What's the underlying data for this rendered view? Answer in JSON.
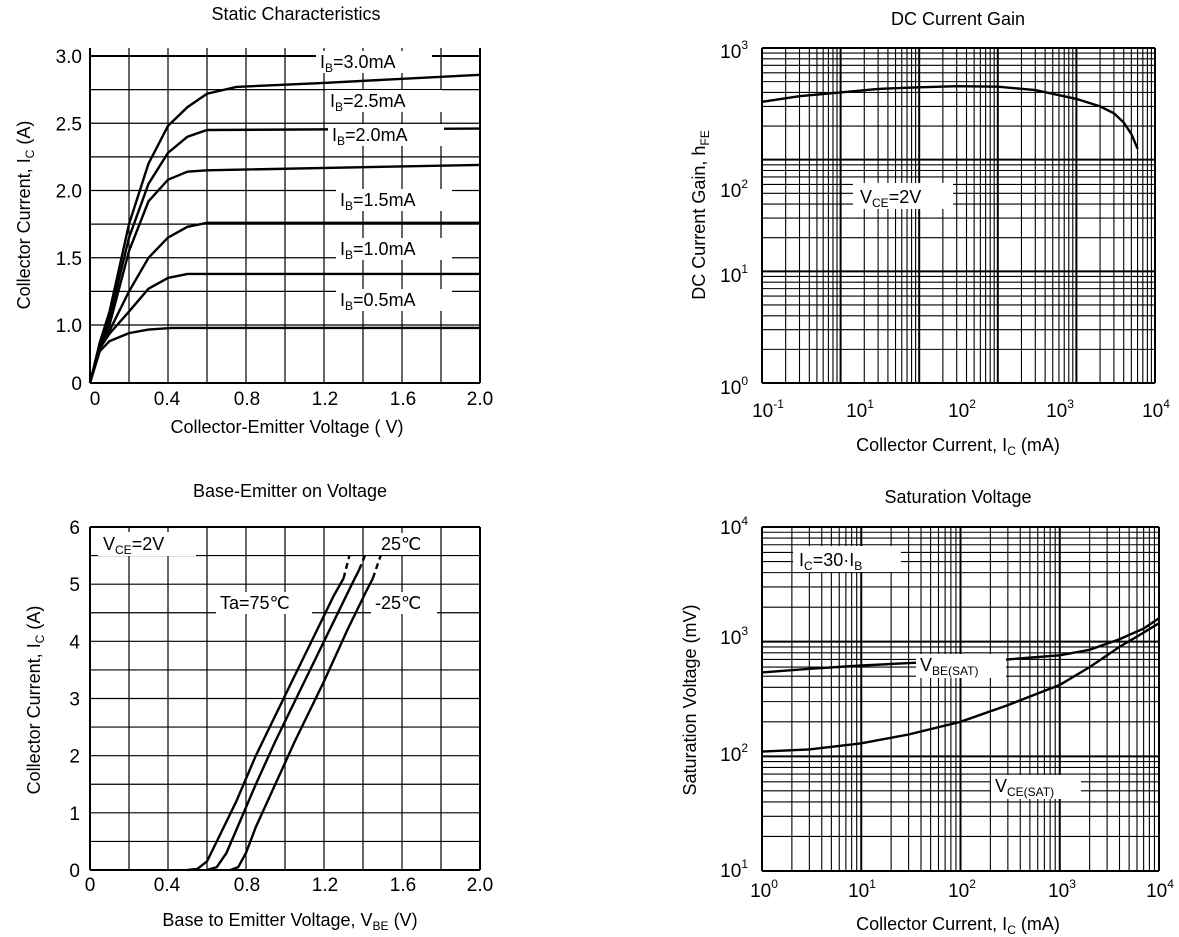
{
  "chart_data": [
    {
      "type": "line",
      "title": "Static Characteristics",
      "xlabel": "Collector-Emitter Voltage ( V)",
      "ylabel_main": "Collector Current, I",
      "ylabel_sub": "C",
      "ylabel_tail": " (A)",
      "xlim": [
        0,
        2.0
      ],
      "ylim": [
        0,
        3.0
      ],
      "x_ticks": [
        "0",
        "0.4",
        "0.8",
        "1.2",
        "1.6",
        "2.0"
      ],
      "y_ticks": [
        "0",
        "1.0",
        "1.5",
        "2.0",
        "2.5",
        "3.0"
      ],
      "grid": true,
      "series": [
        {
          "name": "IB=0.5mA",
          "label_main": "I",
          "label_sub": "B",
          "label_tail": "=0.5mA",
          "points": [
            [
              0,
              0
            ],
            [
              0.05,
              0.55
            ],
            [
              0.1,
              0.72
            ],
            [
              0.2,
              0.86
            ],
            [
              0.3,
              0.92
            ],
            [
              0.42,
              0.95
            ],
            [
              2.0,
              0.95
            ]
          ]
        },
        {
          "name": "IB=1.0mA",
          "label_main": "I",
          "label_sub": "B",
          "label_tail": "=1.0mA",
          "points": [
            [
              0,
              0
            ],
            [
              0.05,
              0.6
            ],
            [
              0.1,
              0.85
            ],
            [
              0.2,
              1.1
            ],
            [
              0.3,
              1.27
            ],
            [
              0.4,
              1.35
            ],
            [
              0.5,
              1.38
            ],
            [
              2.0,
              1.38
            ]
          ]
        },
        {
          "name": "IB=1.5mA",
          "label_main": "I",
          "label_sub": "B",
          "label_tail": "=1.5mA",
          "points": [
            [
              0,
              0
            ],
            [
              0.05,
              0.62
            ],
            [
              0.1,
              0.9
            ],
            [
              0.2,
              1.25
            ],
            [
              0.3,
              1.5
            ],
            [
              0.4,
              1.65
            ],
            [
              0.5,
              1.73
            ],
            [
              0.6,
              1.76
            ],
            [
              2.0,
              1.76
            ]
          ]
        },
        {
          "name": "IB=2.0mA",
          "label_main": "I",
          "label_sub": "B",
          "label_tail": "=2.0mA",
          "points": [
            [
              0,
              0
            ],
            [
              0.05,
              0.65
            ],
            [
              0.1,
              1.0
            ],
            [
              0.2,
              1.55
            ],
            [
              0.3,
              1.92
            ],
            [
              0.4,
              2.08
            ],
            [
              0.5,
              2.14
            ],
            [
              0.6,
              2.15
            ],
            [
              2.0,
              2.19
            ]
          ]
        },
        {
          "name": "IB=2.5mA",
          "label_main": "I",
          "label_sub": "B",
          "label_tail": "=2.5mA",
          "points": [
            [
              0,
              0
            ],
            [
              0.05,
              0.68
            ],
            [
              0.1,
              1.05
            ],
            [
              0.2,
              1.65
            ],
            [
              0.3,
              2.05
            ],
            [
              0.4,
              2.28
            ],
            [
              0.5,
              2.4
            ],
            [
              0.6,
              2.45
            ],
            [
              2.0,
              2.46
            ]
          ]
        },
        {
          "name": "IB=3.0mA",
          "label_main": "I",
          "label_sub": "B",
          "label_tail": "=3.0mA",
          "points": [
            [
              0,
              0
            ],
            [
              0.05,
              0.7
            ],
            [
              0.1,
              1.1
            ],
            [
              0.2,
              1.75
            ],
            [
              0.3,
              2.2
            ],
            [
              0.4,
              2.48
            ],
            [
              0.5,
              2.62
            ],
            [
              0.6,
              2.72
            ],
            [
              0.75,
              2.77
            ],
            [
              1.2,
              2.8
            ],
            [
              2.0,
              2.86
            ]
          ]
        }
      ]
    },
    {
      "type": "line",
      "title": "DC Current Gain",
      "xlabel_main": "Collector Current, I",
      "xlabel_sub": "C",
      "xlabel_tail": " (mA)",
      "ylabel_main": "DC Current Gain, h",
      "ylabel_sub": "FE",
      "x_log": true,
      "y_log": true,
      "xlim": [
        0.1,
        10000
      ],
      "ylim": [
        1,
        1000
      ],
      "x_ticks": [
        {
          "base": "10",
          "exp": "-1"
        },
        {
          "base": "10",
          "exp": "1"
        },
        {
          "base": "10",
          "exp": "2"
        },
        {
          "base": "10",
          "exp": "3"
        },
        {
          "base": "10",
          "exp": "4"
        }
      ],
      "y_ticks": [
        {
          "base": "10",
          "exp": "0"
        },
        {
          "base": "10",
          "exp": "1"
        },
        {
          "base": "10",
          "exp": "2"
        },
        {
          "base": "10",
          "exp": "3"
        }
      ],
      "annotation": {
        "main": "V",
        "sub": "CE",
        "tail": "=2V"
      },
      "grid": true,
      "series": [
        {
          "points": [
            [
              0.1,
              330
            ],
            [
              0.3,
              370
            ],
            [
              1,
              400
            ],
            [
              3,
              430
            ],
            [
              10,
              445
            ],
            [
              30,
              455
            ],
            [
              100,
              450
            ],
            [
              300,
              420
            ],
            [
              1000,
              350
            ],
            [
              2000,
              300
            ],
            [
              3000,
              260
            ],
            [
              4000,
              215
            ],
            [
              5000,
              170
            ],
            [
              6000,
              125
            ]
          ]
        }
      ]
    },
    {
      "type": "line",
      "title": "Base-Emitter on Voltage",
      "xlabel_main": "Base to Emitter Voltage,  V",
      "xlabel_sub": "BE",
      "xlabel_tail": " (V)",
      "ylabel_main": "Collector Current, I",
      "ylabel_sub": "C",
      "ylabel_tail": " (A)",
      "xlim": [
        0,
        2.0
      ],
      "ylim": [
        0,
        6
      ],
      "x_ticks": [
        "0",
        "0.4",
        "0.8",
        "1.2",
        "1.6",
        "2.0"
      ],
      "y_ticks": [
        "0",
        "1",
        "2",
        "3",
        "4",
        "5",
        "6"
      ],
      "annotation": {
        "main": "V",
        "sub": "CE",
        "tail": "=2V"
      },
      "grid": true,
      "series": [
        {
          "name": "Ta=75℃",
          "label": "Ta=75℃",
          "points": [
            [
              0.5,
              0
            ],
            [
              0.55,
              0.02
            ],
            [
              0.6,
              0.15
            ],
            [
              0.65,
              0.5
            ],
            [
              0.75,
              1.2
            ],
            [
              0.85,
              2.0
            ],
            [
              1.0,
              3.05
            ],
            [
              1.15,
              4.1
            ],
            [
              1.25,
              4.8
            ],
            [
              1.3,
              5.1
            ]
          ],
          "dashed_points": [
            [
              1.3,
              5.1
            ],
            [
              1.33,
              5.5
            ]
          ]
        },
        {
          "name": "25℃",
          "label": "25℃",
          "points": [
            [
              0.6,
              0
            ],
            [
              0.65,
              0.05
            ],
            [
              0.7,
              0.3
            ],
            [
              0.75,
              0.7
            ],
            [
              0.85,
              1.5
            ],
            [
              0.95,
              2.25
            ],
            [
              1.1,
              3.3
            ],
            [
              1.25,
              4.35
            ],
            [
              1.35,
              5.05
            ],
            [
              1.38,
              5.25
            ]
          ],
          "dashed_points": [
            [
              1.38,
              5.25
            ],
            [
              1.41,
              5.5
            ]
          ]
        },
        {
          "name": "-25℃",
          "label": "-25℃",
          "points": [
            [
              0.72,
              0
            ],
            [
              0.76,
              0.05
            ],
            [
              0.8,
              0.3
            ],
            [
              0.85,
              0.75
            ],
            [
              0.95,
              1.5
            ],
            [
              1.05,
              2.25
            ],
            [
              1.2,
              3.3
            ],
            [
              1.32,
              4.2
            ],
            [
              1.42,
              4.9
            ],
            [
              1.45,
              5.1
            ]
          ],
          "dashed_points": [
            [
              1.45,
              5.1
            ],
            [
              1.49,
              5.5
            ]
          ]
        }
      ]
    },
    {
      "type": "line",
      "title": "Saturation Voltage",
      "xlabel_main": "Collector Current, I",
      "xlabel_sub": "C",
      "xlabel_tail": " (mA)",
      "ylabel": "Saturation Voltage (mV)",
      "x_log": true,
      "y_log": true,
      "xlim": [
        1,
        10000
      ],
      "ylim": [
        10,
        10000
      ],
      "x_ticks": [
        {
          "base": "10",
          "exp": "0"
        },
        {
          "base": "10",
          "exp": "1"
        },
        {
          "base": "10",
          "exp": "2"
        },
        {
          "base": "10",
          "exp": "3"
        },
        {
          "base": "10",
          "exp": "4"
        }
      ],
      "y_ticks": [
        {
          "base": "10",
          "exp": "1"
        },
        {
          "base": "10",
          "exp": "2"
        },
        {
          "base": "10",
          "exp": "3"
        },
        {
          "base": "10",
          "exp": "4"
        }
      ],
      "annotation": {
        "main": "I",
        "sub": "C",
        "tail": "=30·I",
        "sub2": "B"
      },
      "grid": true,
      "series": [
        {
          "name": "VBE(SAT)",
          "label_main": "V",
          "label_sub": "BE(SAT)",
          "points": [
            [
              1,
              540
            ],
            [
              3,
              580
            ],
            [
              10,
              620
            ],
            [
              30,
              650
            ],
            [
              100,
              680
            ],
            [
              300,
              700
            ],
            [
              1000,
              760
            ],
            [
              2000,
              850
            ],
            [
              4000,
              1050
            ],
            [
              7000,
              1300
            ],
            [
              10000,
              1600
            ]
          ]
        },
        {
          "name": "VCE(SAT)",
          "label_main": "V",
          "label_sub": "CE(SAT)",
          "points": [
            [
              1,
              110
            ],
            [
              3,
              115
            ],
            [
              10,
              130
            ],
            [
              30,
              155
            ],
            [
              100,
              200
            ],
            [
              300,
              280
            ],
            [
              1000,
              420
            ],
            [
              2000,
              600
            ],
            [
              4000,
              900
            ],
            [
              7000,
              1200
            ],
            [
              10000,
              1450
            ]
          ]
        }
      ]
    }
  ]
}
